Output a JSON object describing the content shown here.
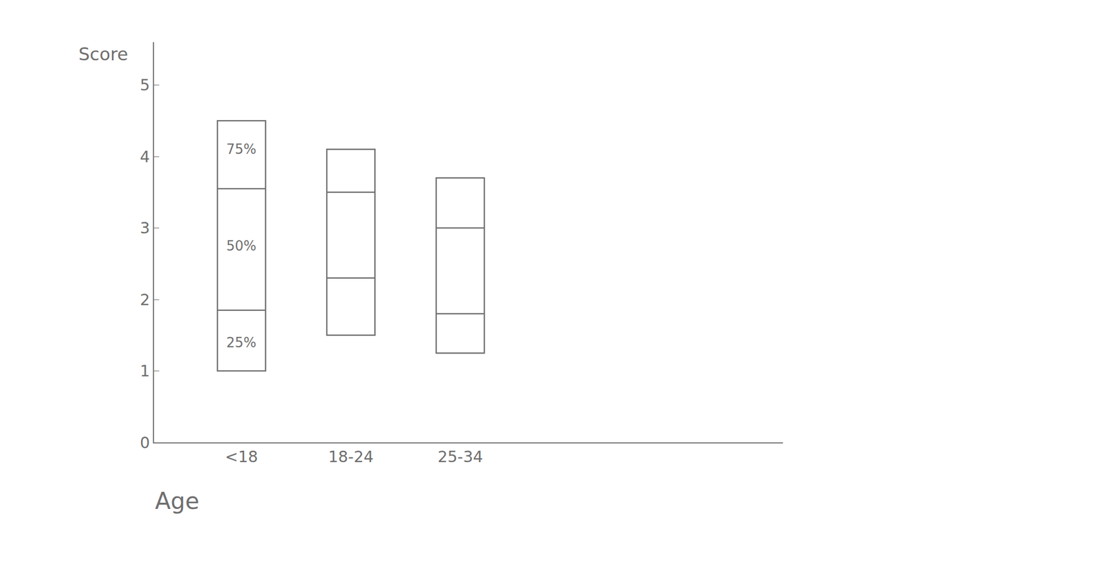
{
  "chart_data": {
    "type": "box",
    "x_label": "Age",
    "y_label": "Score",
    "categories": [
      "<18",
      "18-24",
      "25-34"
    ],
    "min": [
      1.0,
      1.5,
      1.25
    ],
    "q1": [
      1.85,
      2.3,
      1.8
    ],
    "q3": [
      3.55,
      3.5,
      3.0
    ],
    "max": [
      4.5,
      4.1,
      3.7
    ],
    "annotations": [
      {
        "text": "75%",
        "x": "<18",
        "y": 4.1
      },
      {
        "text": "50%",
        "x": "<18",
        "y": 2.75
      },
      {
        "text": "25%",
        "x": "<18",
        "y": 1.4
      }
    ],
    "color": "#6f6f6f",
    "ylim": [
      0,
      5.6
    ],
    "yticks": [
      0,
      1,
      2,
      3,
      4,
      5
    ],
    "grid": false
  }
}
